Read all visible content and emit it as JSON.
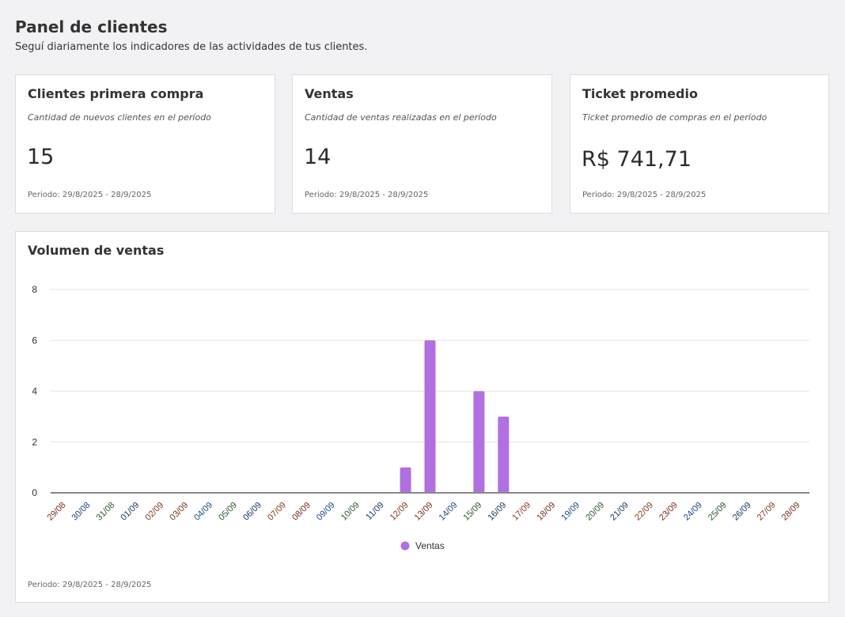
{
  "header": {
    "title": "Panel de clientes",
    "subtitle": "Seguí diariamente los indicadores de las actividades de tus clientes."
  },
  "cards": [
    {
      "title": "Clientes primera compra",
      "description": "Cantidad de nuevos clientes en el período",
      "value": "15",
      "period": "Periodo: 29/8/2025 - 28/9/2025"
    },
    {
      "title": "Ventas",
      "description": "Cantidad de ventas realizadas en el período",
      "value": "14",
      "period": "Periodo: 29/8/2025 - 28/9/2025"
    },
    {
      "title": "Ticket promedio",
      "description": "Ticket promedio de compras en el período",
      "value": "R$ 741,71",
      "period": "Periodo: 29/8/2025 - 28/9/2025"
    }
  ],
  "chart_panel": {
    "title": "Volumen de ventas",
    "period": "Periodo: 29/8/2025 - 28/9/2025"
  },
  "chart_data": {
    "type": "bar",
    "categories": [
      "29/08",
      "30/08",
      "31/08",
      "01/09",
      "02/09",
      "03/09",
      "04/09",
      "05/09",
      "06/09",
      "07/09",
      "08/09",
      "09/09",
      "10/09",
      "11/09",
      "12/09",
      "13/09",
      "14/09",
      "15/09",
      "16/09",
      "17/09",
      "18/09",
      "19/09",
      "20/09",
      "21/09",
      "22/09",
      "23/09",
      "24/09",
      "25/09",
      "26/09",
      "27/09",
      "28/09"
    ],
    "series": [
      {
        "name": "Ventas",
        "values": [
          0,
          0,
          0,
          0,
          0,
          0,
          0,
          0,
          0,
          0,
          0,
          0,
          0,
          0,
          1,
          6,
          0,
          4,
          3,
          0,
          0,
          0,
          0,
          0,
          0,
          0,
          0,
          0,
          0,
          0,
          0
        ],
        "color": "#b070e0"
      }
    ],
    "yticks": [
      0,
      2,
      4,
      6,
      8
    ],
    "ylim": [
      0,
      8
    ],
    "grid": true,
    "legend": "bottom"
  }
}
